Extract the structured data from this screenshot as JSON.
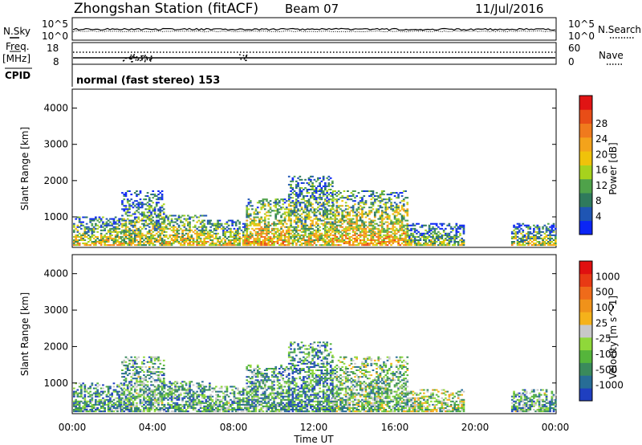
{
  "header": {
    "station": "Zhongshan Station (fitACF)",
    "beam": "Beam 07",
    "date": "11/Jul/2016"
  },
  "noise_panel": {
    "left_label": "N.Sky",
    "left_ticks": [
      "10^5",
      "10^0"
    ],
    "right_ticks": [
      "10^5",
      "10^0"
    ],
    "right_label": "N.Search"
  },
  "freq_panel": {
    "left_label_1": "Freq.",
    "left_label_2": "[MHz]",
    "left_ticks": [
      "18",
      "8"
    ],
    "right_ticks": [
      "60",
      "0"
    ],
    "right_label": "Nave"
  },
  "cpid": {
    "label": "CPID",
    "value": "normal (fast stereo) 153"
  },
  "chart_data": [
    {
      "type": "heatmap",
      "quantity": "Power",
      "ylabel": "Slant Range [km]",
      "ylim": [
        180,
        4500
      ],
      "yticks": [
        1000,
        2000,
        3000,
        4000
      ],
      "colorbar_label": "Power [dB]",
      "colorbar_ticks": [
        "4",
        "8",
        "12",
        "16",
        "20",
        "24",
        "28"
      ],
      "colors": [
        "#0b25f5",
        "#1f55b3",
        "#2f7a5c",
        "#4fa24a",
        "#a6d21d",
        "#f0c20a",
        "#f4a31b",
        "#f07a1d",
        "#e84d17",
        "#e01414"
      ],
      "segments": [
        {
          "t0": 0.0,
          "t1": 2.4,
          "r0": 200,
          "r1": 1000,
          "level": 0.55
        },
        {
          "t0": 2.4,
          "t1": 4.5,
          "r0": 200,
          "r1": 1700,
          "level": 0.5
        },
        {
          "t0": 4.5,
          "t1": 6.8,
          "r0": 200,
          "r1": 1050,
          "level": 0.6
        },
        {
          "t0": 6.8,
          "t1": 8.6,
          "r0": 200,
          "r1": 900,
          "level": 0.55
        },
        {
          "t0": 8.6,
          "t1": 10.7,
          "r0": 200,
          "r1": 1500,
          "level": 0.65
        },
        {
          "t0": 10.7,
          "t1": 12.9,
          "r0": 200,
          "r1": 2100,
          "level": 0.55
        },
        {
          "t0": 12.9,
          "t1": 16.6,
          "r0": 200,
          "r1": 1700,
          "level": 0.65
        },
        {
          "t0": 16.6,
          "t1": 19.4,
          "r0": 200,
          "r1": 800,
          "level": 0.45
        },
        {
          "t0": 21.8,
          "t1": 24.0,
          "r0": 200,
          "r1": 800,
          "level": 0.5
        }
      ]
    },
    {
      "type": "heatmap",
      "quantity": "Velocity",
      "ylabel": "Slant Range [km]",
      "ylim": [
        180,
        4500
      ],
      "yticks": [
        1000,
        2000,
        3000,
        4000
      ],
      "colorbar_label": "Velocity [m s^-1]",
      "colorbar_ticks": [
        "1000",
        "500",
        "100",
        "25",
        "-25",
        "-100",
        "-500",
        "-1000"
      ],
      "colors": [
        "#1f3fc0",
        "#276d96",
        "#3a8a5c",
        "#55b53b",
        "#8fd83a",
        "#c8c8c8",
        "#f5b21a",
        "#f0921a",
        "#ef6b1a",
        "#e83a14",
        "#e01010"
      ],
      "segments": [
        {
          "t0": 0.0,
          "t1": 2.4,
          "r0": 200,
          "r1": 1000,
          "level": 0.25
        },
        {
          "t0": 2.4,
          "t1": 4.5,
          "r0": 200,
          "r1": 1700,
          "level": 0.3
        },
        {
          "t0": 4.5,
          "t1": 6.8,
          "r0": 200,
          "r1": 1050,
          "level": 0.25
        },
        {
          "t0": 6.8,
          "t1": 8.6,
          "r0": 200,
          "r1": 900,
          "level": 0.3
        },
        {
          "t0": 8.6,
          "t1": 10.7,
          "r0": 200,
          "r1": 1500,
          "level": 0.28
        },
        {
          "t0": 10.7,
          "t1": 12.9,
          "r0": 200,
          "r1": 2100,
          "level": 0.22
        },
        {
          "t0": 12.9,
          "t1": 16.6,
          "r0": 200,
          "r1": 1700,
          "level": 0.35
        },
        {
          "t0": 16.6,
          "t1": 19.4,
          "r0": 200,
          "r1": 800,
          "level": 0.4
        },
        {
          "t0": 21.8,
          "t1": 24.0,
          "r0": 200,
          "r1": 800,
          "level": 0.3
        }
      ]
    }
  ],
  "time_axis": {
    "ticks": [
      "00:00",
      "04:00",
      "08:00",
      "12:00",
      "16:00",
      "20:00",
      "00:00"
    ],
    "label": "Time UT"
  }
}
